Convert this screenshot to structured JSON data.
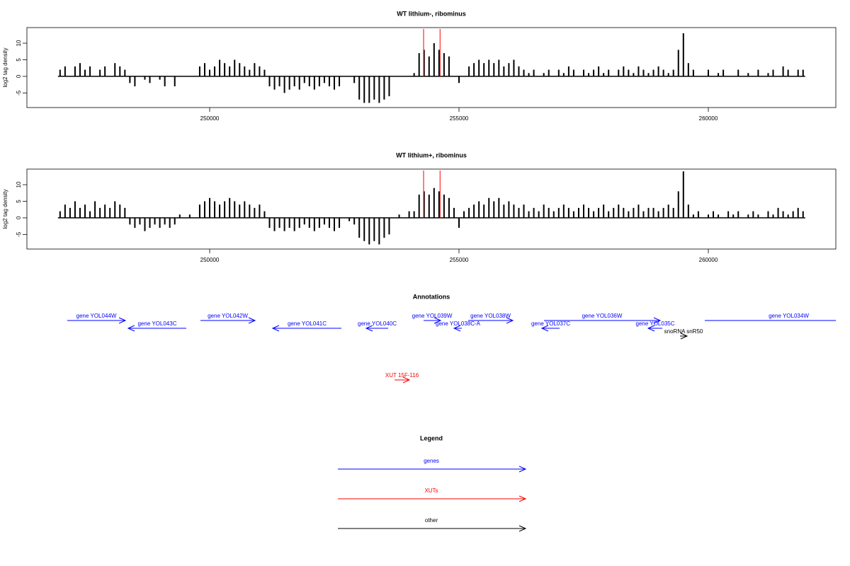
{
  "chart_data": [
    {
      "type": "bar",
      "title": "WT lithium-, ribominus",
      "y_label": "log2 tag density",
      "color": "#000000",
      "xlim": [
        246335,
        262557
      ],
      "xticks": [
        250000,
        255000,
        260000
      ],
      "ylim": [
        -9.4,
        14.7
      ],
      "yticks": [
        -5,
        0,
        5,
        10
      ],
      "vlines": {
        "values": [
          254290,
          254620
        ],
        "color": "#ff0000"
      },
      "x": [
        247000,
        247100,
        247200,
        247300,
        247400,
        247500,
        247600,
        247700,
        247800,
        247900,
        248000,
        248100,
        248200,
        248300,
        248400,
        248500,
        248600,
        248700,
        248800,
        248900,
        249000,
        249100,
        249200,
        249300,
        249400,
        249500,
        249600,
        249700,
        249800,
        249900,
        250000,
        250100,
        250200,
        250300,
        250400,
        250500,
        250600,
        250700,
        250800,
        250900,
        251000,
        251100,
        251200,
        251300,
        251400,
        251500,
        251600,
        251700,
        251800,
        251900,
        252000,
        252100,
        252200,
        252300,
        252400,
        252500,
        252600,
        252700,
        252800,
        252900,
        253000,
        253100,
        253200,
        253300,
        253400,
        253500,
        253600,
        253700,
        253800,
        253900,
        254000,
        254100,
        254200,
        254300,
        254400,
        254500,
        254600,
        254700,
        254800,
        254900,
        255000,
        255100,
        255200,
        255300,
        255400,
        255500,
        255600,
        255700,
        255800,
        255900,
        256000,
        256100,
        256200,
        256300,
        256400,
        256500,
        256600,
        256700,
        256800,
        256900,
        257000,
        257100,
        257200,
        257300,
        257400,
        257500,
        257600,
        257700,
        257800,
        257900,
        258000,
        258100,
        258200,
        258300,
        258400,
        258500,
        258600,
        258700,
        258800,
        258900,
        259000,
        259100,
        259200,
        259300,
        259400,
        259500,
        259600,
        259700,
        259800,
        259900,
        260000,
        260100,
        260200,
        260300,
        260400,
        260500,
        260600,
        260700,
        260800,
        260900,
        261000,
        261100,
        261200,
        261300,
        261400,
        261500,
        261600,
        261700,
        261800,
        261900
      ],
      "values": [
        2,
        3,
        0,
        3,
        4,
        2,
        3,
        0,
        2,
        3,
        0,
        4,
        3,
        2,
        -2,
        -3,
        0,
        -1,
        -2,
        0,
        -1,
        -3,
        0,
        -3,
        0,
        0,
        0,
        0,
        3,
        4,
        2,
        3,
        5,
        4,
        3,
        5,
        4,
        3,
        2,
        4,
        3,
        2,
        -3,
        -4,
        -3,
        -5,
        -4,
        -3,
        -4,
        -2,
        -3,
        -4,
        -3,
        -2,
        -3,
        -4,
        -3,
        0,
        0,
        -2,
        -7,
        -8,
        -8,
        -7,
        -8,
        -7,
        -6,
        0,
        0,
        0,
        0,
        1,
        7,
        8,
        6,
        10,
        8,
        7,
        6,
        0,
        -2,
        0,
        3,
        4,
        5,
        4,
        5,
        4,
        5,
        3,
        4,
        5,
        3,
        2,
        1,
        2,
        0,
        1,
        2,
        0,
        2,
        1,
        3,
        2,
        0,
        2,
        1,
        2,
        3,
        1,
        2,
        0,
        2,
        3,
        2,
        1,
        3,
        2,
        1,
        2,
        3,
        2,
        1,
        2,
        8,
        13,
        4,
        2,
        0,
        0,
        2,
        0,
        1,
        2,
        0,
        0,
        2,
        0,
        1,
        0,
        2,
        0,
        1,
        2,
        0,
        3,
        2,
        0,
        2,
        2
      ]
    },
    {
      "type": "bar",
      "title": "WT lithium+, ribominus",
      "y_label": "log2 tag density",
      "color": "#000000",
      "xlim": [
        246335,
        262557
      ],
      "xticks": [
        250000,
        255000,
        260000
      ],
      "ylim": [
        -9.4,
        14.7
      ],
      "yticks": [
        -5,
        0,
        5,
        10
      ],
      "vlines": {
        "values": [
          254290,
          254620
        ],
        "color": "#ff0000"
      },
      "x": [
        247000,
        247100,
        247200,
        247300,
        247400,
        247500,
        247600,
        247700,
        247800,
        247900,
        248000,
        248100,
        248200,
        248300,
        248400,
        248500,
        248600,
        248700,
        248800,
        248900,
        249000,
        249100,
        249200,
        249300,
        249400,
        249500,
        249600,
        249700,
        249800,
        249900,
        250000,
        250100,
        250200,
        250300,
        250400,
        250500,
        250600,
        250700,
        250800,
        250900,
        251000,
        251100,
        251200,
        251300,
        251400,
        251500,
        251600,
        251700,
        251800,
        251900,
        252000,
        252100,
        252200,
        252300,
        252400,
        252500,
        252600,
        252700,
        252800,
        252900,
        253000,
        253100,
        253200,
        253300,
        253400,
        253500,
        253600,
        253700,
        253800,
        253900,
        254000,
        254100,
        254200,
        254300,
        254400,
        254500,
        254600,
        254700,
        254800,
        254900,
        255000,
        255100,
        255200,
        255300,
        255400,
        255500,
        255600,
        255700,
        255800,
        255900,
        256000,
        256100,
        256200,
        256300,
        256400,
        256500,
        256600,
        256700,
        256800,
        256900,
        257000,
        257100,
        257200,
        257300,
        257400,
        257500,
        257600,
        257700,
        257800,
        257900,
        258000,
        258100,
        258200,
        258300,
        258400,
        258500,
        258600,
        258700,
        258800,
        258900,
        259000,
        259100,
        259200,
        259300,
        259400,
        259500,
        259600,
        259700,
        259800,
        259900,
        260000,
        260100,
        260200,
        260300,
        260400,
        260500,
        260600,
        260700,
        260800,
        260900,
        261000,
        261100,
        261200,
        261300,
        261400,
        261500,
        261600,
        261700,
        261800,
        261900
      ],
      "values": [
        2,
        4,
        3,
        5,
        3,
        4,
        2,
        5,
        3,
        4,
        3,
        5,
        4,
        3,
        -2,
        -3,
        -2,
        -4,
        -3,
        -2,
        -3,
        -2,
        -3,
        -2,
        1,
        0,
        1,
        0,
        4,
        5,
        6,
        5,
        4,
        5,
        6,
        5,
        4,
        5,
        4,
        3,
        4,
        2,
        -3,
        -4,
        -3,
        -4,
        -3,
        -4,
        -3,
        -2,
        -3,
        -4,
        -3,
        -2,
        -3,
        -4,
        -3,
        0,
        -1,
        -2,
        -6,
        -7,
        -8,
        -7,
        -8,
        -6,
        -5,
        0,
        1,
        0,
        2,
        2,
        7,
        8,
        7,
        9,
        8,
        7,
        6,
        3,
        -3,
        2,
        3,
        4,
        5,
        4,
        6,
        5,
        6,
        4,
        5,
        4,
        3,
        4,
        2,
        3,
        2,
        4,
        3,
        2,
        3,
        4,
        3,
        2,
        3,
        4,
        3,
        2,
        3,
        4,
        2,
        3,
        4,
        3,
        2,
        3,
        4,
        2,
        3,
        3,
        2,
        3,
        4,
        3,
        8,
        14,
        4,
        1,
        2,
        0,
        1,
        2,
        1,
        0,
        2,
        1,
        2,
        0,
        1,
        2,
        1,
        0,
        2,
        1,
        3,
        2,
        1,
        2,
        3,
        2
      ]
    }
  ],
  "annotations": {
    "title": "Annotations",
    "xlim": [
      246335,
      262557
    ],
    "genes": {
      "color": "#0000ff",
      "features": [
        {
          "label": "gene YOL044W",
          "start": 247145,
          "end": 248310,
          "strand": "+"
        },
        {
          "label": "gene YOL043C",
          "start": 248366,
          "end": 249531,
          "strand": "-"
        },
        {
          "label": "gene YOL042W",
          "start": 249815,
          "end": 250909,
          "strand": "+"
        },
        {
          "label": "gene YOL041C",
          "start": 251264,
          "end": 252642,
          "strand": "-"
        },
        {
          "label": "gene YOL040C",
          "start": 253139,
          "end": 253580,
          "strand": "-"
        },
        {
          "label": "gene YOL039W",
          "start": 254290,
          "end": 254631,
          "strand": "+"
        },
        {
          "label": "gene YOL038C-A",
          "start": 254901,
          "end": 255057,
          "strand": "-"
        },
        {
          "label": "gene YOL038W",
          "start": 255185,
          "end": 256080,
          "strand": "+"
        },
        {
          "label": "gene YOL037C",
          "start": 256662,
          "end": 257017,
          "strand": "-"
        },
        {
          "label": "gene YOL036W",
          "start": 256705,
          "end": 259034,
          "strand": "+"
        },
        {
          "label": "gene YOL035C",
          "start": 258793,
          "end": 259077,
          "strand": "-"
        },
        {
          "label": "gene YOL034W",
          "start": 259929,
          "end": 263300,
          "strand": "+"
        }
      ]
    },
    "other": {
      "color": "#000000",
      "features": [
        {
          "label": "snoRNA snR50",
          "start": 259432,
          "end": 259574,
          "strand": "+"
        }
      ]
    },
    "xuts": {
      "color": "#ff0000",
      "features": [
        {
          "label": "XUT 15F-116",
          "start": 253707,
          "end": 254006,
          "strand": "+"
        }
      ]
    }
  },
  "legend": {
    "title": "Legend",
    "items": [
      {
        "name": "genes",
        "color": "#0000ff"
      },
      {
        "name": "XUTs",
        "color": "#ff0000"
      },
      {
        "name": "other",
        "color": "#000000"
      }
    ]
  }
}
